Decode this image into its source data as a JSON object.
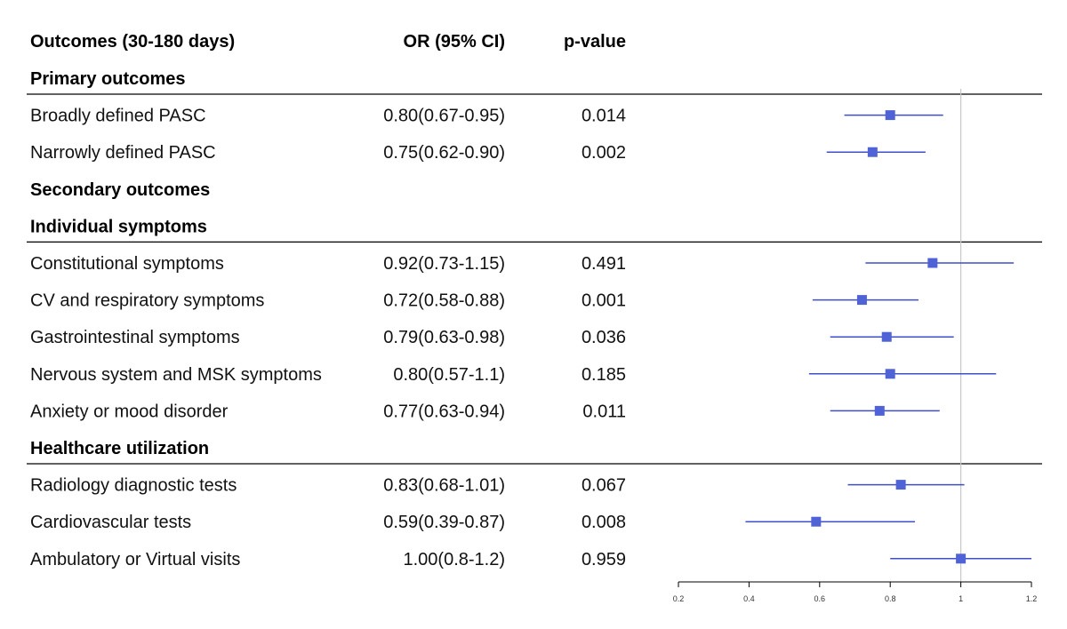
{
  "chart_data": {
    "type": "forest",
    "headers": {
      "outcome": "Outcomes (30-180 days)",
      "or_ci": "OR (95% CI)",
      "p": "p-value"
    },
    "rows": [
      {
        "kind": "section",
        "label": "Primary outcomes",
        "underline": true
      },
      {
        "kind": "data",
        "label": "Broadly defined PASC",
        "or_text": "0.80(0.67-0.95)",
        "p": "0.014",
        "or": 0.8,
        "lo": 0.67,
        "hi": 0.95
      },
      {
        "kind": "data",
        "label": "Narrowly defined PASC",
        "or_text": "0.75(0.62-0.90)",
        "p": "0.002",
        "or": 0.75,
        "lo": 0.62,
        "hi": 0.9
      },
      {
        "kind": "section",
        "label": "Secondary outcomes",
        "underline": false
      },
      {
        "kind": "section",
        "label": "Individual symptoms",
        "underline": true
      },
      {
        "kind": "data",
        "label": "Constitutional symptoms",
        "or_text": "0.92(0.73-1.15)",
        "p": "0.491",
        "or": 0.92,
        "lo": 0.73,
        "hi": 1.15
      },
      {
        "kind": "data",
        "label": "CV and respiratory symptoms",
        "or_text": "0.72(0.58-0.88)",
        "p": "0.001",
        "or": 0.72,
        "lo": 0.58,
        "hi": 0.88
      },
      {
        "kind": "data",
        "label": "Gastrointestinal symptoms",
        "or_text": "0.79(0.63-0.98)",
        "p": "0.036",
        "or": 0.79,
        "lo": 0.63,
        "hi": 0.98
      },
      {
        "kind": "data",
        "label": "Nervous system and MSK symptoms",
        "or_text": "0.80(0.57-1.1)",
        "p": "0.185",
        "or": 0.8,
        "lo": 0.57,
        "hi": 1.1
      },
      {
        "kind": "data",
        "label": "Anxiety or mood disorder",
        "or_text": "0.77(0.63-0.94)",
        "p": "0.011",
        "or": 0.77,
        "lo": 0.63,
        "hi": 0.94
      },
      {
        "kind": "section",
        "label": "Healthcare utilization",
        "underline": true
      },
      {
        "kind": "data",
        "label": "Radiology diagnostic tests",
        "or_text": "0.83(0.68-1.01)",
        "p": "0.067",
        "or": 0.83,
        "lo": 0.68,
        "hi": 1.01
      },
      {
        "kind": "data",
        "label": "Cardiovascular tests",
        "or_text": "0.59(0.39-0.87)",
        "p": "0.008",
        "or": 0.59,
        "lo": 0.39,
        "hi": 0.87
      },
      {
        "kind": "data",
        "label": "Ambulatory or Virtual visits",
        "or_text": "1.00(0.8-1.2)",
        "p": "0.959",
        "or": 1.0,
        "lo": 0.8,
        "hi": 1.2
      }
    ],
    "xaxis": {
      "min": 0.2,
      "max": 1.2,
      "ticks": [
        0.2,
        0.4,
        0.6,
        0.8,
        1,
        1.2
      ],
      "tick_labels": [
        "0.2",
        "0.4",
        "0.6",
        "0.8",
        "1",
        "1.2"
      ],
      "reference_line": 1
    },
    "colors": {
      "marker": "#4f63d6",
      "ci_line": "#3f4fc8",
      "reference": "#c8c8c8",
      "rule": "#000000",
      "axis": "#000000"
    }
  }
}
